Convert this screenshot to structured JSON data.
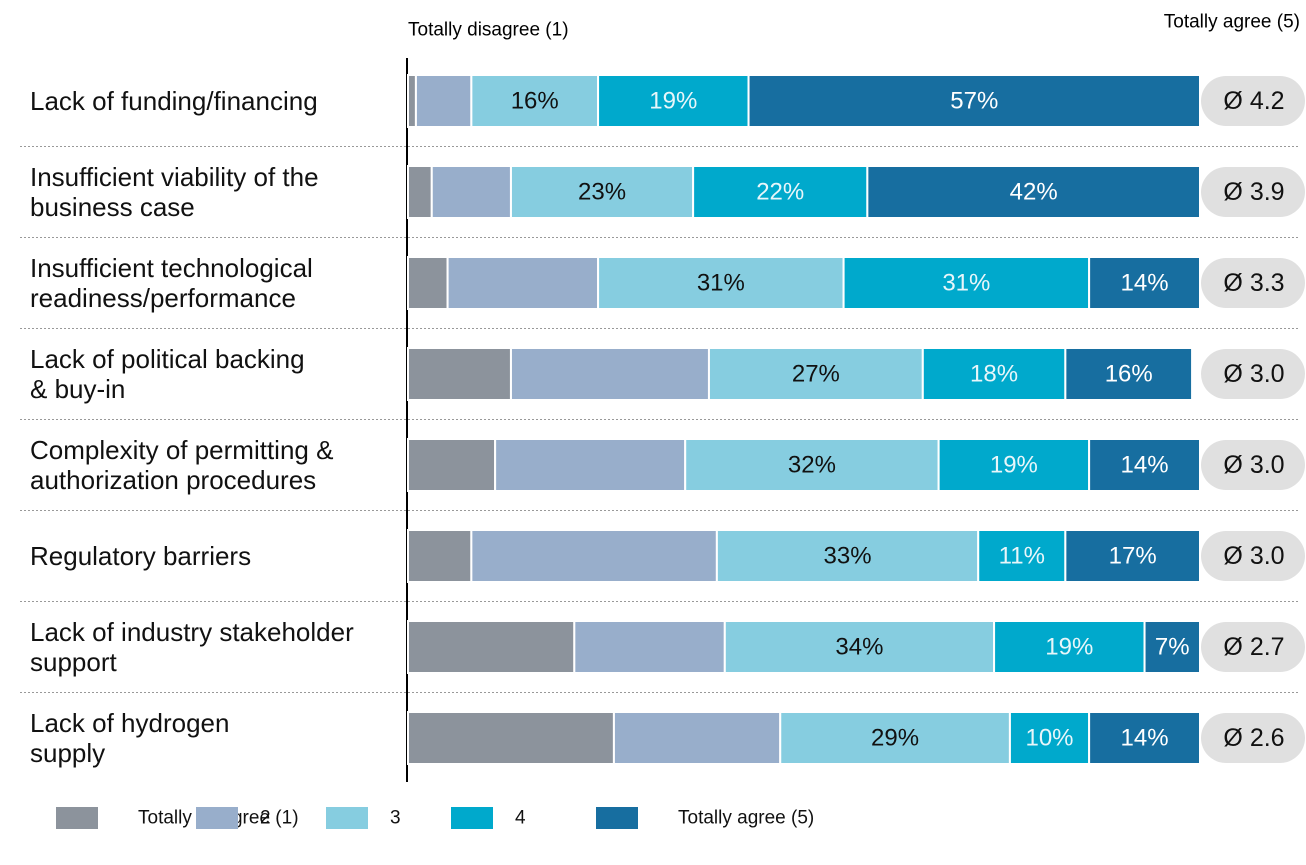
{
  "chart_data": {
    "type": "stacked_bar_horizontal",
    "scale_low_label": "Totally disagree (1)",
    "scale_high_label": "Totally agree (5)",
    "categories": [
      "Lack of funding/financing",
      "Insufficient viability of the\nbusiness case",
      "Insufficient technological\nreadiness/performance",
      "Lack of political backing\n& buy-in",
      "Complexity of permitting &\nauthorization procedures",
      "Regulatory barriers",
      "Lack of industry stakeholder\nsupport",
      "Lack of hydrogen\nsupply"
    ],
    "xlim": [
      0,
      100
    ],
    "series": [
      {
        "name": "Totally disagree (1)",
        "color": "#8c939c",
        "label_color": "#000000",
        "values": [
          1,
          3,
          5,
          13,
          11,
          8,
          21,
          26
        ],
        "value_labels": [
          null,
          null,
          null,
          null,
          null,
          null,
          null,
          null
        ]
      },
      {
        "name": "2",
        "color": "#98aecb",
        "label_color": "#000000",
        "values": [
          7,
          10,
          19,
          25,
          24,
          31,
          19,
          21
        ],
        "value_labels": [
          null,
          null,
          null,
          null,
          null,
          null,
          null,
          null
        ]
      },
      {
        "name": "3",
        "color": "#86cde0",
        "label_color": "#111111",
        "values": [
          16,
          23,
          31,
          27,
          32,
          33,
          34,
          29
        ],
        "value_labels": [
          "16%",
          "23%",
          "31%",
          "27%",
          "32%",
          "33%",
          "34%",
          "29%"
        ]
      },
      {
        "name": "4",
        "color": "#00a9cc",
        "label_color": "#e8f6fa",
        "values": [
          19,
          22,
          31,
          18,
          19,
          11,
          19,
          10
        ],
        "value_labels": [
          "19%",
          "22%",
          "31%",
          "18%",
          "19%",
          "11%",
          "19%",
          "10%"
        ]
      },
      {
        "name": "Totally agree (5)",
        "color": "#176ea0",
        "label_color": "#ffffff",
        "values": [
          57,
          42,
          14,
          16,
          14,
          17,
          7,
          14
        ],
        "value_labels": [
          "57%",
          "42%",
          "14%",
          "16%",
          "14%",
          "17%",
          "7%",
          "14%"
        ]
      }
    ],
    "averages": [
      4.2,
      3.9,
      3.3,
      3.0,
      3.0,
      3.0,
      2.7,
      2.6
    ],
    "average_labels": [
      "Ø 4.2",
      "Ø 3.9",
      "Ø 3.3",
      "Ø 3.0",
      "Ø 3.0",
      "Ø 3.0",
      "Ø 2.7",
      "Ø 2.6"
    ]
  }
}
